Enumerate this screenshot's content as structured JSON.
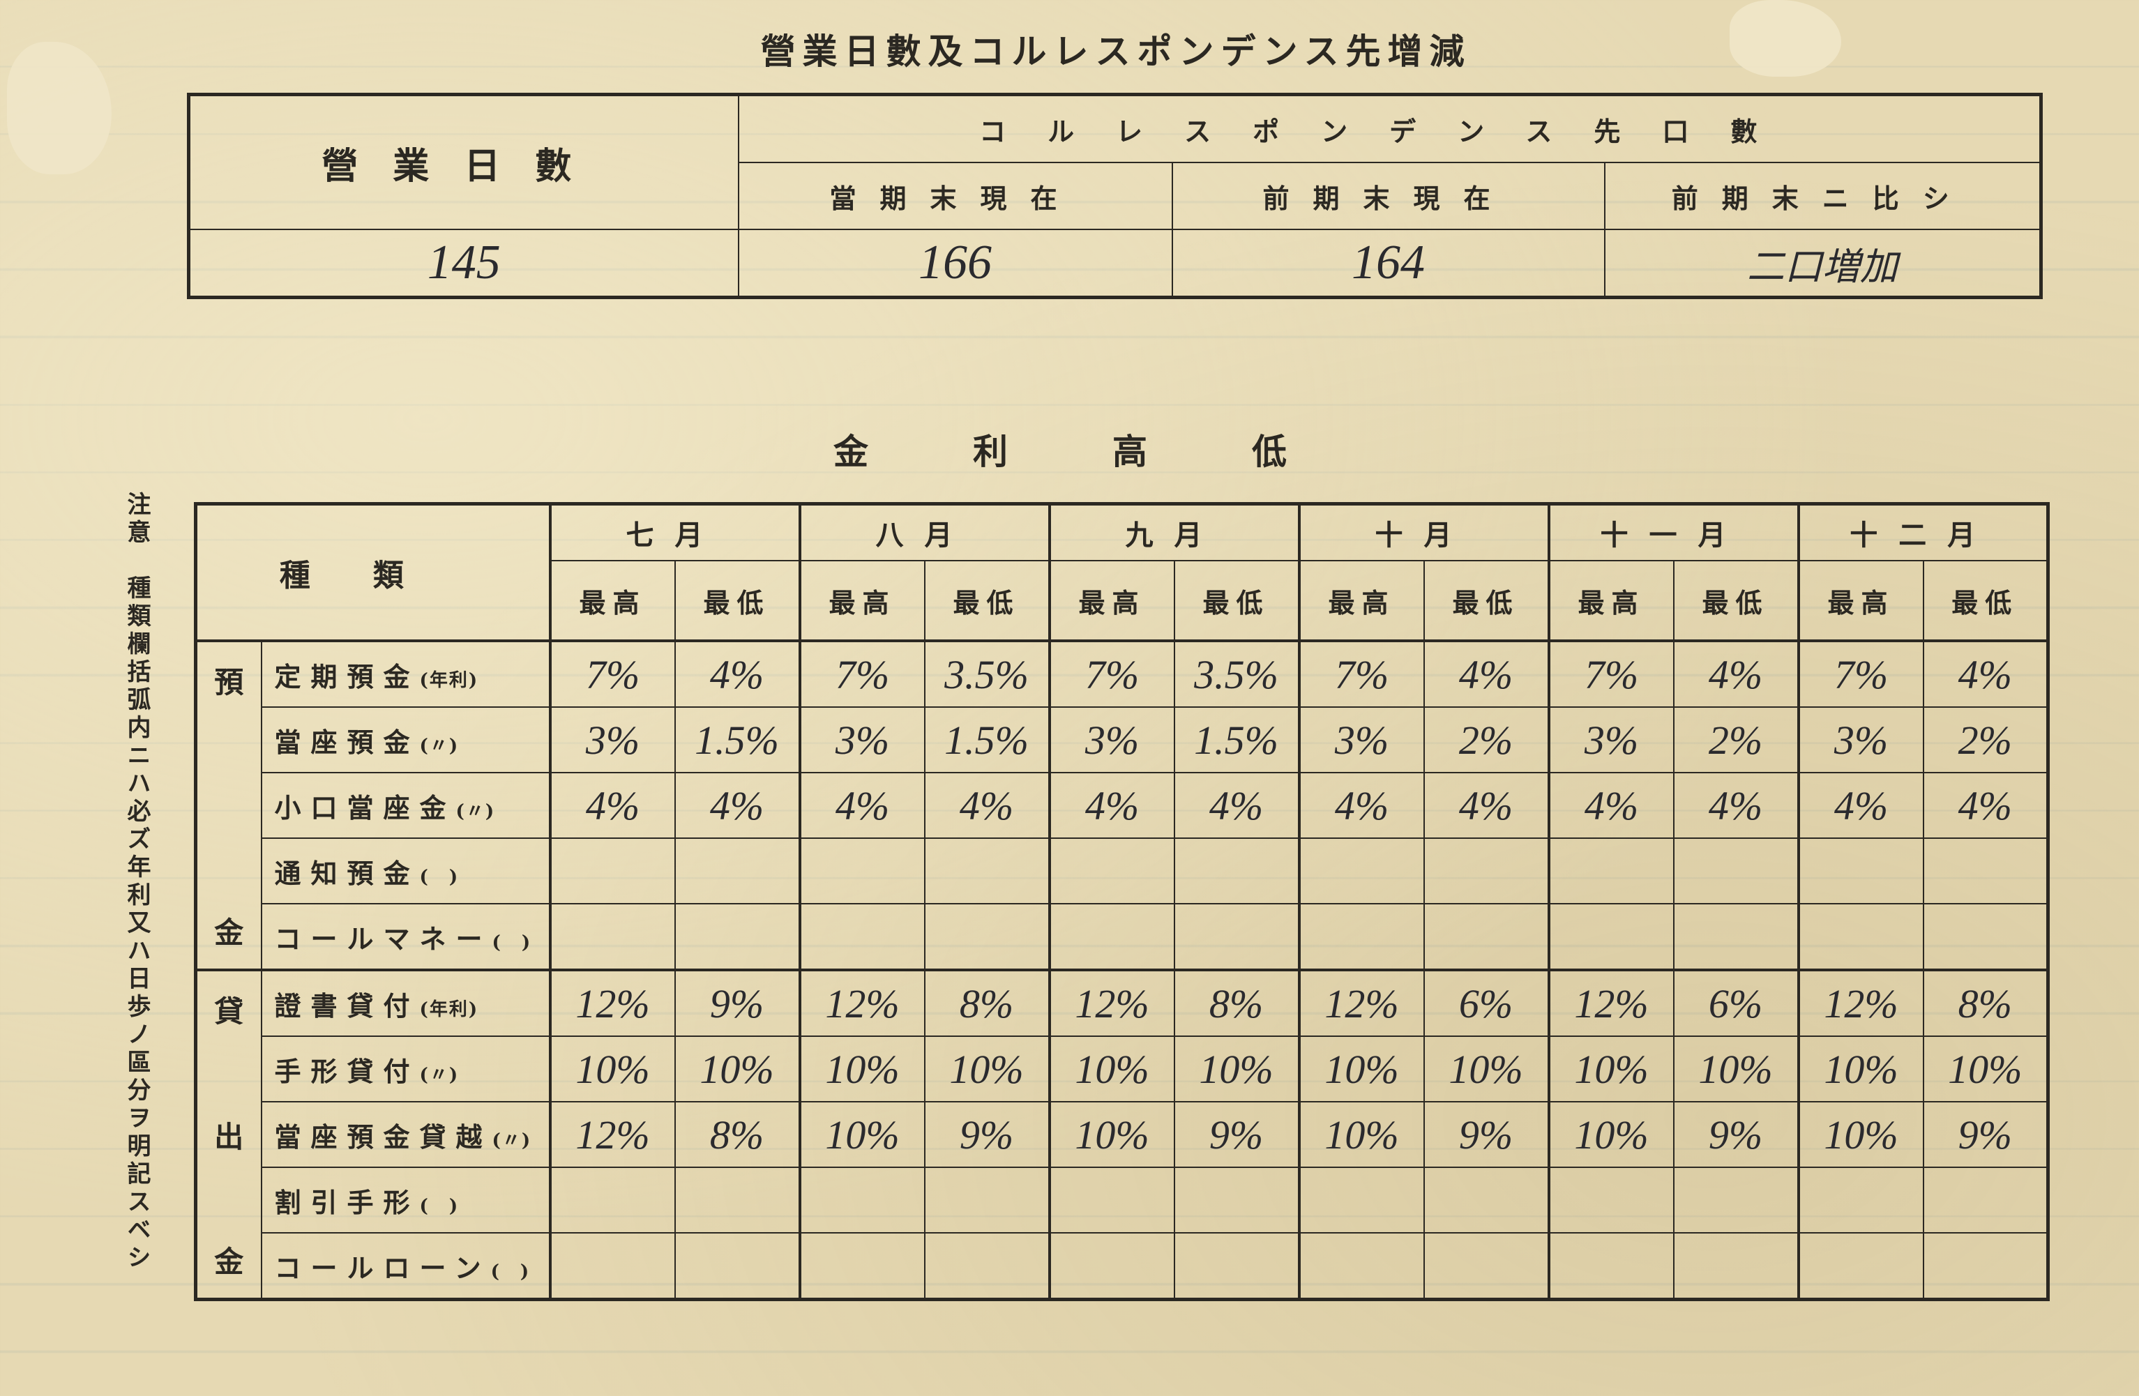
{
  "title": "營業日數及コルレスポンデンス先增減",
  "top_table": {
    "business_days_label": "營業日數",
    "correspondent_header": "コルレスポンデンス先口數",
    "columns": [
      "當期末現在",
      "前期末現在",
      "前期末ニ比シ"
    ],
    "business_days_value": "145",
    "values": [
      "166",
      "164",
      "二口増加"
    ]
  },
  "heading": "金利高低",
  "note": "注意　種類欄括弧内ニハ必ズ年利又ハ日歩ノ區分ヲ明記スベシ",
  "main_table": {
    "type_header": "種類",
    "months": [
      "七月",
      "八月",
      "九月",
      "十月",
      "十一月",
      "十二月"
    ],
    "sub_headers": [
      "最高",
      "最低"
    ],
    "groups": [
      {
        "label_top": "預",
        "label_bottom": "金",
        "rows": [
          {
            "label": "定期預金",
            "unit": "(年利)",
            "values": [
              "7%",
              "4%",
              "7%",
              "3.5%",
              "7%",
              "3.5%",
              "7%",
              "4%",
              "7%",
              "4%",
              "7%",
              "4%"
            ]
          },
          {
            "label": "當座預金",
            "unit": "(〃)",
            "values": [
              "3%",
              "1.5%",
              "3%",
              "1.5%",
              "3%",
              "1.5%",
              "3%",
              "2%",
              "3%",
              "2%",
              "3%",
              "2%"
            ]
          },
          {
            "label": "小口當座金",
            "unit": "(〃)",
            "values": [
              "4%",
              "4%",
              "4%",
              "4%",
              "4%",
              "4%",
              "4%",
              "4%",
              "4%",
              "4%",
              "4%",
              "4%"
            ]
          },
          {
            "label": "通知預金",
            "unit": "(　)",
            "values": [
              "",
              "",
              "",
              "",
              "",
              "",
              "",
              "",
              "",
              "",
              "",
              ""
            ]
          },
          {
            "label": "コールマネー",
            "unit": "(　)",
            "values": [
              "",
              "",
              "",
              "",
              "",
              "",
              "",
              "",
              "",
              "",
              "",
              ""
            ]
          }
        ]
      },
      {
        "label_top": "貸",
        "label_mid": "出",
        "label_bottom": "金",
        "rows": [
          {
            "label": "證書貸付",
            "unit": "(年利)",
            "values": [
              "12%",
              "9%",
              "12%",
              "8%",
              "12%",
              "8%",
              "12%",
              "6%",
              "12%",
              "6%",
              "12%",
              "8%"
            ]
          },
          {
            "label": "手形貸付",
            "unit": "(〃)",
            "values": [
              "10%",
              "10%",
              "10%",
              "10%",
              "10%",
              "10%",
              "10%",
              "10%",
              "10%",
              "10%",
              "10%",
              "10%"
            ]
          },
          {
            "label": "當座預金貸越",
            "unit": "(〃)",
            "values": [
              "12%",
              "8%",
              "10%",
              "9%",
              "10%",
              "9%",
              "10%",
              "9%",
              "10%",
              "9%",
              "10%",
              "9%"
            ]
          },
          {
            "label": "割引手形",
            "unit": "(　)",
            "values": [
              "",
              "",
              "",
              "",
              "",
              "",
              "",
              "",
              "",
              "",
              "",
              ""
            ]
          },
          {
            "label": "コールローン",
            "unit": "(　)",
            "values": [
              "",
              "",
              "",
              "",
              "",
              "",
              "",
              "",
              "",
              "",
              "",
              ""
            ]
          }
        ]
      }
    ]
  }
}
